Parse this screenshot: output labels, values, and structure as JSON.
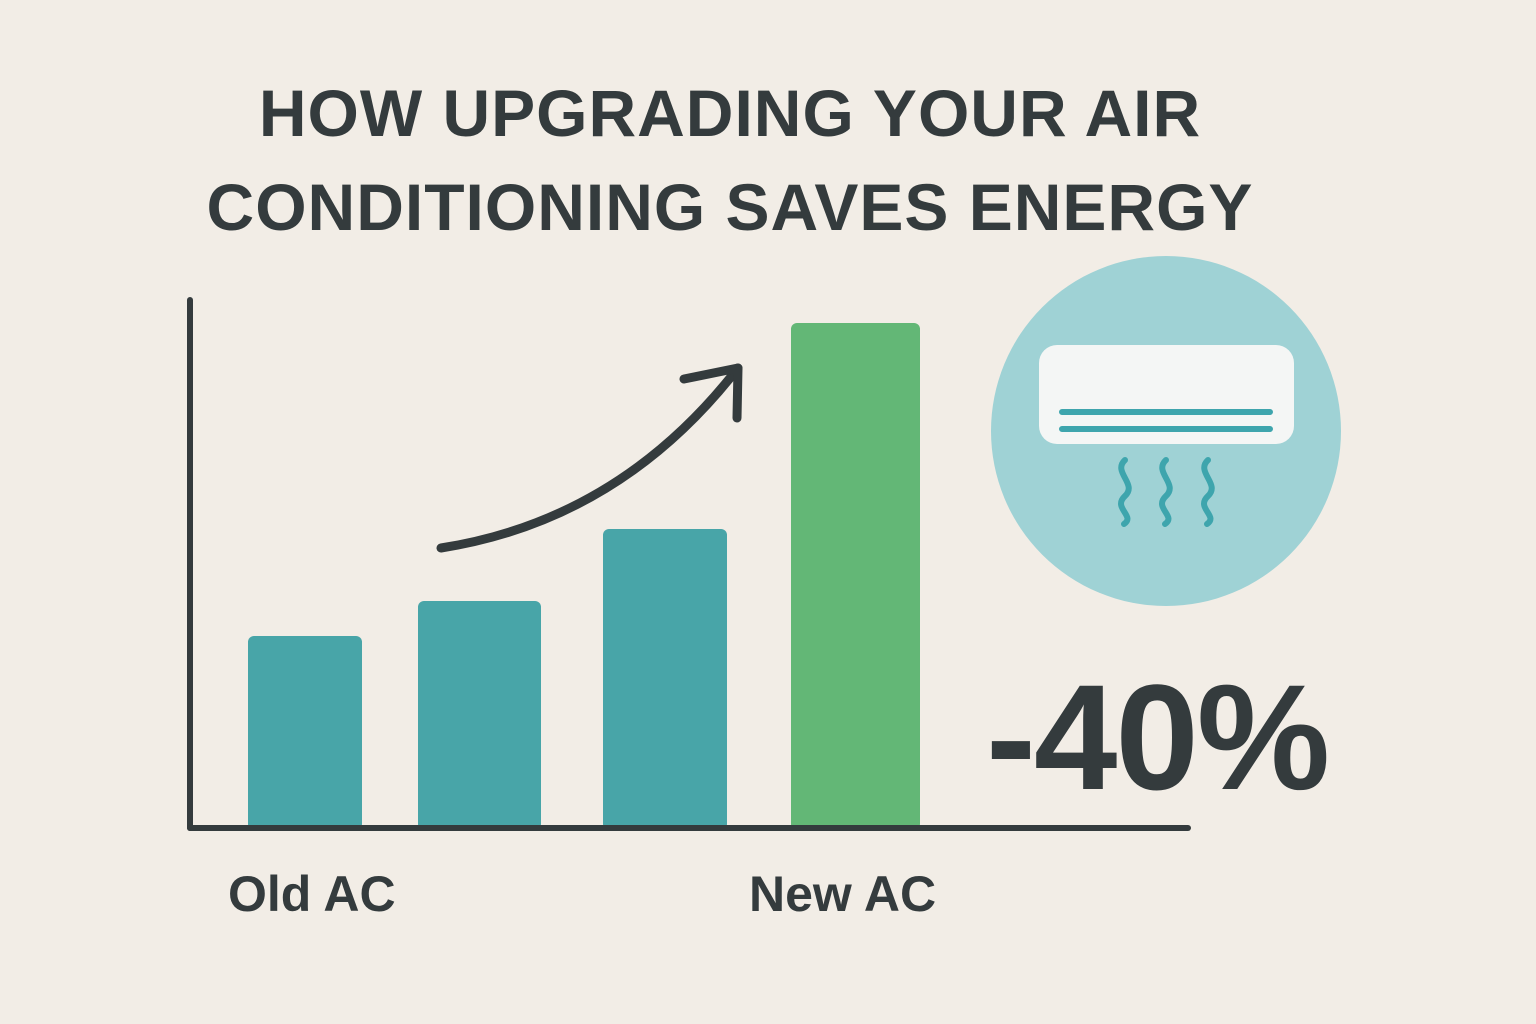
{
  "title": {
    "line1": "HOW UPGRADING YOUR AIR",
    "line2": "CONDITIONING SAVES ENERGY"
  },
  "stat": "-40%",
  "icons": {
    "trend": "trend-arrow-icon",
    "ac": "air-conditioner-icon"
  },
  "colors": {
    "background": "#f2ede6",
    "bar_teal": "#48a5a8",
    "bar_green": "#63b776",
    "text": "#343b3d",
    "circle": "#9fd2d5"
  },
  "chart_data": {
    "type": "bar",
    "category_labels": [
      "Old AC",
      "New AC"
    ],
    "series": [
      {
        "values": [
          190,
          225,
          297,
          503
        ]
      }
    ],
    "bar_colors": [
      "#48a5a8",
      "#48a5a8",
      "#48a5a8",
      "#63b776"
    ],
    "ylim": [
      0,
      530
    ],
    "grid": false,
    "legend": "none"
  }
}
